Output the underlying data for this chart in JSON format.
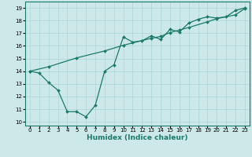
{
  "title": "",
  "xlabel": "Humidex (Indice chaleur)",
  "bg_color": "#cce8e8",
  "grid_color": "#aad4d4",
  "line_color": "#1a7a6a",
  "xlim": [
    -0.5,
    23.5
  ],
  "ylim": [
    9.7,
    19.5
  ],
  "xticks": [
    0,
    1,
    2,
    3,
    4,
    5,
    6,
    7,
    8,
    9,
    10,
    11,
    12,
    13,
    14,
    15,
    16,
    17,
    18,
    19,
    20,
    21,
    22,
    23
  ],
  "yticks": [
    10,
    11,
    12,
    13,
    14,
    15,
    16,
    17,
    18,
    19
  ],
  "line1_x": [
    0,
    1,
    2,
    3,
    4,
    5,
    6,
    7,
    8,
    9,
    10,
    11,
    12,
    13,
    14,
    15,
    16,
    17,
    18,
    19,
    20,
    21,
    22,
    23
  ],
  "line1_y": [
    14.0,
    13.85,
    13.1,
    12.5,
    10.8,
    10.8,
    10.4,
    11.3,
    14.0,
    14.5,
    16.7,
    16.3,
    16.4,
    16.8,
    16.5,
    17.3,
    17.1,
    17.8,
    18.1,
    18.3,
    18.2,
    18.3,
    18.8,
    19.0
  ],
  "line2_x": [
    0,
    2,
    5,
    8,
    10,
    13,
    14,
    15,
    16,
    17,
    19,
    20,
    22,
    23
  ],
  "line2_y": [
    14.0,
    14.35,
    15.05,
    15.6,
    16.05,
    16.6,
    16.75,
    17.05,
    17.25,
    17.45,
    17.9,
    18.15,
    18.45,
    18.95
  ],
  "marker": "D",
  "markersize": 2.0,
  "linewidth": 0.9,
  "xlabel_fontsize": 6.5,
  "tick_fontsize": 5.0
}
